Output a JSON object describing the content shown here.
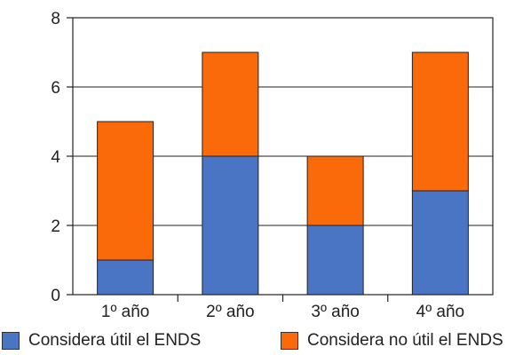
{
  "chart_data": {
    "type": "bar",
    "stacked": true,
    "categories": [
      "1º año",
      "2º año",
      "3º año",
      "4º año"
    ],
    "series": [
      {
        "name": "Considera útil el ENDS",
        "values": [
          1,
          4,
          2,
          3
        ],
        "color": "#4a74c4"
      },
      {
        "name": "Considera no útil el ENDS",
        "values": [
          4,
          3,
          2,
          4
        ],
        "color": "#fa6a0a"
      }
    ],
    "ylim": [
      0,
      8
    ],
    "yticks": [
      0,
      2,
      4,
      6,
      8
    ],
    "grid": true,
    "legend": "bottom",
    "title": "",
    "xlabel": "",
    "ylabel": ""
  }
}
